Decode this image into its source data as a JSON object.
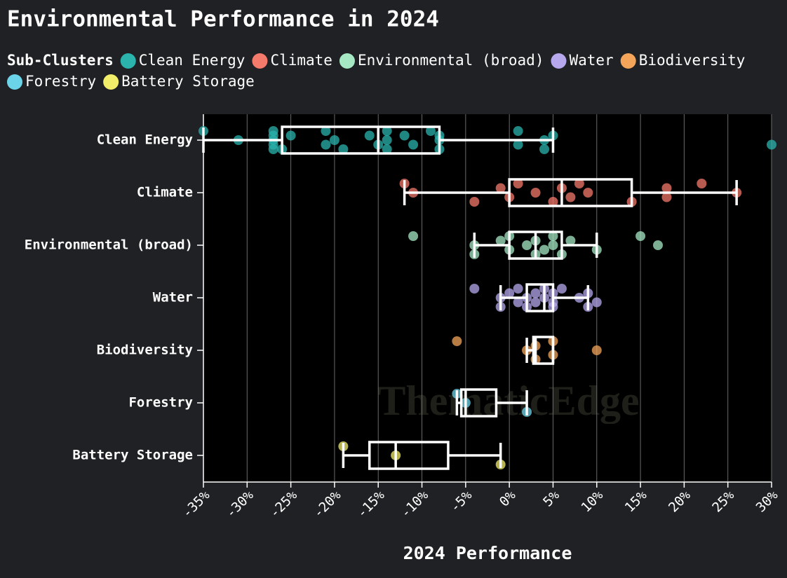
{
  "chart_data": {
    "type": "box",
    "title": "Environmental Performance in 2024",
    "legend_title": "Sub-Clusters",
    "xlabel": "2024 Performance",
    "watermark": "ThematicEdge",
    "categories": [
      "Clean Energy",
      "Climate",
      "Environmental (broad)",
      "Water",
      "Biodiversity",
      "Forestry",
      "Battery Storage"
    ],
    "xlim": [
      -35,
      30
    ],
    "xticks": [
      {
        "value": -35,
        "label": "-35%"
      },
      {
        "value": -30,
        "label": "-30%"
      },
      {
        "value": -25,
        "label": "-25%"
      },
      {
        "value": -20,
        "label": "-20%"
      },
      {
        "value": -15,
        "label": "-15%"
      },
      {
        "value": -10,
        "label": "-10%"
      },
      {
        "value": -5,
        "label": "-5%"
      },
      {
        "value": 0,
        "label": "0%"
      },
      {
        "value": 5,
        "label": "5%"
      },
      {
        "value": 10,
        "label": "10%"
      },
      {
        "value": 15,
        "label": "15%"
      },
      {
        "value": 20,
        "label": "20%"
      },
      {
        "value": 25,
        "label": "25%"
      },
      {
        "value": 30,
        "label": "30%"
      }
    ],
    "grid": true,
    "series": [
      {
        "name": "Clean Energy",
        "color": "#2bb3ad",
        "box": {
          "whisker_low": -35,
          "q1": -26,
          "median": -15,
          "q3": -8,
          "whisker_high": 5
        },
        "values": [
          -35,
          -31,
          -27,
          -27,
          -27,
          -27,
          -27,
          -26,
          -25,
          -21,
          -21,
          -20,
          -19,
          -16,
          -15,
          -14,
          -14,
          -14,
          -12,
          -11,
          -9,
          -8,
          -8,
          -8,
          1,
          1,
          4,
          4,
          5,
          30
        ]
      },
      {
        "name": "Climate",
        "color": "#f47a6c",
        "box": {
          "whisker_low": -12,
          "q1": 0,
          "median": 6,
          "q3": 14,
          "whisker_high": 26
        },
        "values": [
          -12,
          -11,
          -4,
          -1,
          0,
          1,
          3,
          5,
          6,
          7,
          8,
          9,
          14,
          18,
          18,
          22,
          26
        ]
      },
      {
        "name": "Environmental (broad)",
        "color": "#a6e8c4",
        "box": {
          "whisker_low": -4,
          "q1": 0,
          "median": 3,
          "q3": 6,
          "whisker_high": 10
        },
        "values": [
          -11,
          -4,
          -4,
          -1,
          0,
          0,
          2,
          3,
          3,
          4,
          5,
          5,
          6,
          7,
          10,
          15,
          17
        ]
      },
      {
        "name": "Water",
        "color": "#b7a8ee",
        "box": {
          "whisker_low": -1,
          "q1": 2,
          "median": 4,
          "q3": 5,
          "whisker_high": 9
        },
        "values": [
          -4,
          -1,
          -1,
          0,
          1,
          1,
          2,
          2,
          3,
          3,
          4,
          4,
          5,
          5,
          5,
          6,
          8,
          9,
          9,
          10
        ]
      },
      {
        "name": "Biodiversity",
        "color": "#f4a559",
        "box": {
          "whisker_low": 2,
          "q1": 2.75,
          "median": 3,
          "q3": 5,
          "whisker_high": 5
        },
        "values": [
          -6,
          2,
          3,
          3,
          5,
          5,
          10
        ]
      },
      {
        "name": "Forestry",
        "color": "#6cd4e8",
        "box": {
          "whisker_low": -6,
          "q1": -5.5,
          "median": -5,
          "q3": -1.5,
          "whisker_high": 2
        },
        "values": [
          -6,
          -5,
          2
        ]
      },
      {
        "name": "Battery Storage",
        "color": "#f2ee6a",
        "box": {
          "whisker_low": -19,
          "q1": -16,
          "median": -13,
          "q3": -7,
          "whisker_high": -1
        },
        "values": [
          -19,
          -13,
          -1
        ]
      }
    ]
  }
}
